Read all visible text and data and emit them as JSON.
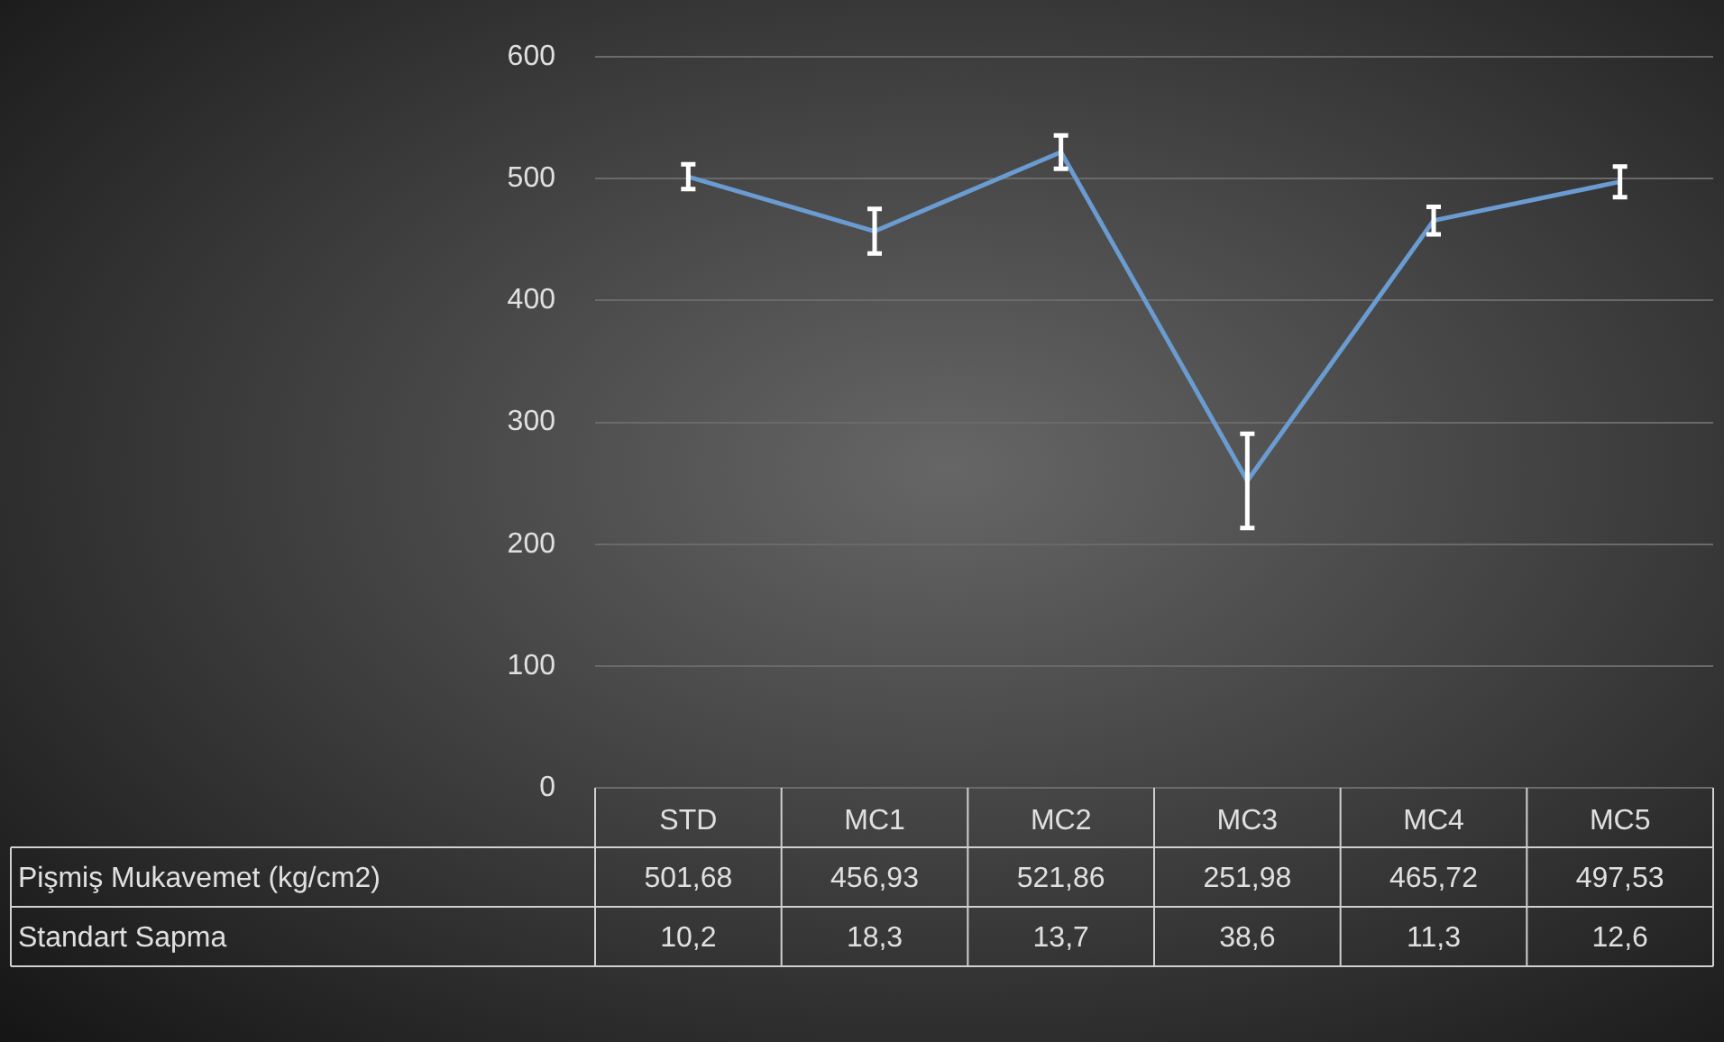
{
  "chart_data": {
    "type": "line",
    "categories": [
      "STD",
      "MC1",
      "MC2",
      "MC3",
      "MC4",
      "MC5"
    ],
    "series": [
      {
        "name": "Pişmiş Mukavemet (kg/cm2)",
        "color": "#6a9bd1",
        "values": [
          501.68,
          456.93,
          521.86,
          251.98,
          465.72,
          497.53
        ],
        "errors": [
          10.2,
          18.3,
          13.7,
          38.6,
          11.3,
          12.6
        ],
        "value_labels": [
          "501,68",
          "456,93",
          "521,86",
          "251,98",
          "465,72",
          "497,53"
        ]
      }
    ],
    "annotations": [
      "Standart Sapma",
      "10,2",
      "18,3",
      "13,7",
      "38,6",
      "11,3",
      "12,6"
    ],
    "ylim": [
      0,
      600
    ],
    "yticks": [
      0,
      100,
      200,
      300,
      400,
      500,
      600
    ],
    "grid": "y",
    "legend": false,
    "marker": "none",
    "line_style": "solid"
  }
}
